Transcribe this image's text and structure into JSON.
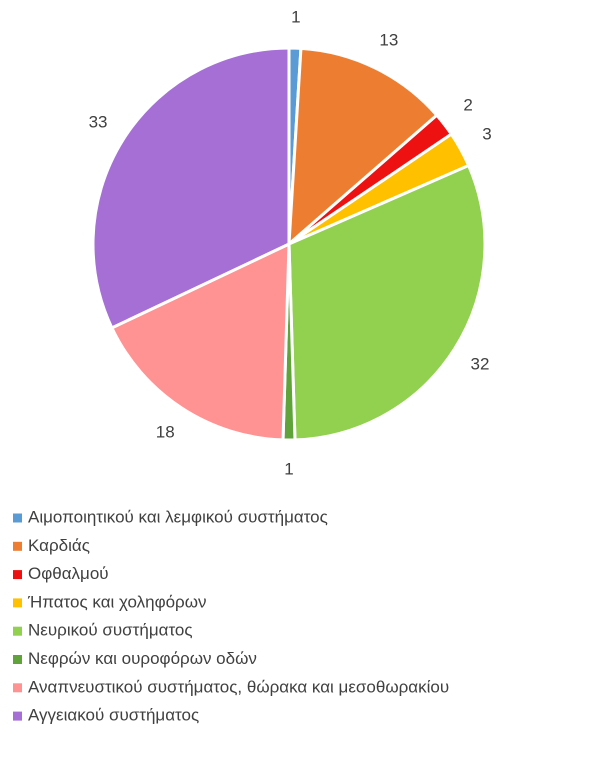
{
  "chart_data": {
    "type": "pie",
    "categories": [
      "Αιμοποιητικού και λεμφικού συστήματος",
      "Καρδιάς",
      "Οφθαλμού",
      "Ήπατος και χοληφόρων",
      "Νευρικού συστήματος",
      "Νεφρών και ουροφόρων οδών",
      "Αναπνευστικού συστήματος, θώρακα και μεσοθωρακίου",
      "Αγγειακού συστήματος"
    ],
    "values": [
      1,
      13,
      2,
      3,
      32,
      1,
      18,
      33
    ],
    "colors": [
      "#5b9bd5",
      "#ed7d31",
      "#ee1111",
      "#ffc000",
      "#92d050",
      "#5fa33a",
      "#ff9393",
      "#a56fd6"
    ],
    "legend": "bottom"
  }
}
